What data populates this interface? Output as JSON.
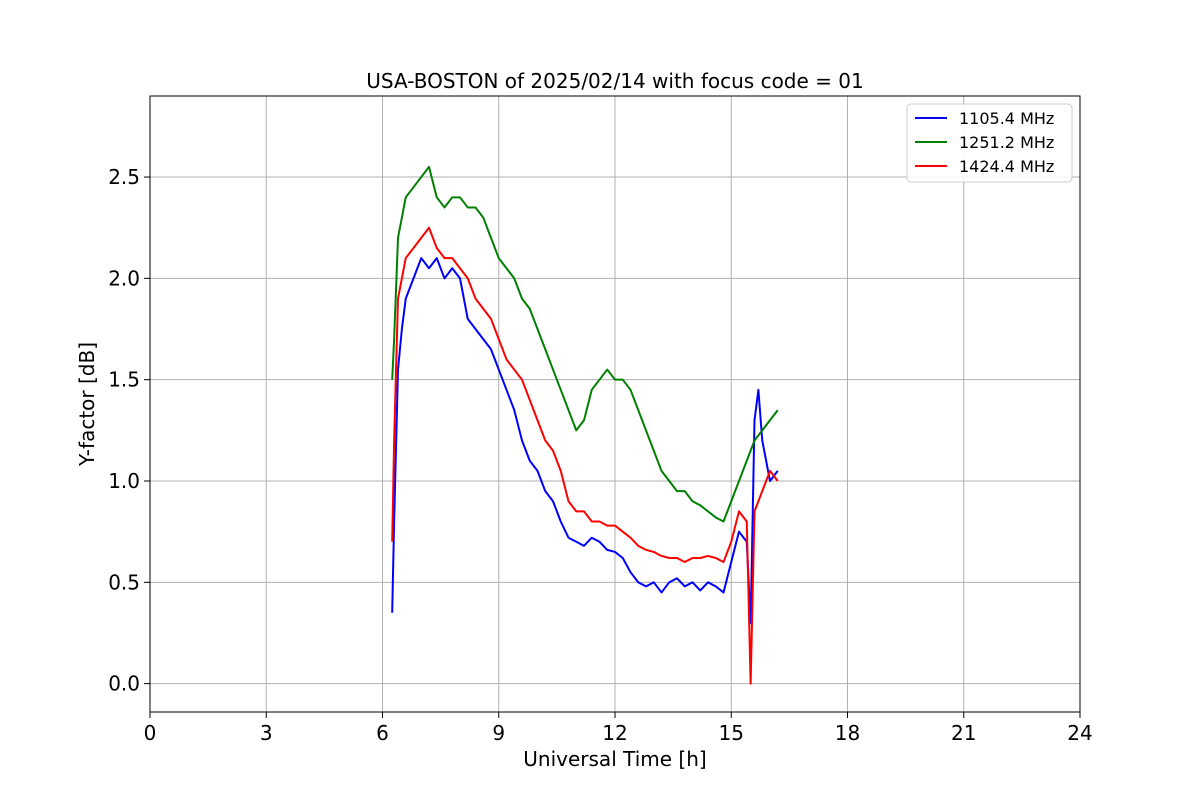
{
  "chart_data": {
    "type": "line",
    "title": "USA-BOSTON of 2025/02/14 with focus code = 01",
    "xlabel": "Universal Time [h]",
    "ylabel": "Y-factor [dB]",
    "xlim": [
      0,
      24
    ],
    "ylim": [
      -0.14,
      2.9
    ],
    "xticks": [
      0,
      3,
      6,
      9,
      12,
      15,
      18,
      21,
      24
    ],
    "xtick_labels": [
      "0",
      "3",
      "6",
      "9",
      "12",
      "15",
      "18",
      "21",
      "24"
    ],
    "yticks": [
      0.0,
      0.5,
      1.0,
      1.5,
      2.0,
      2.5
    ],
    "ytick_labels": [
      "0.0",
      "0.5",
      "1.0",
      "1.5",
      "2.0",
      "2.5"
    ],
    "grid": true,
    "legend_position": "top-right",
    "series": [
      {
        "name": "1105.4 MHz",
        "color": "#0000ff",
        "x": [
          6.25,
          6.3,
          6.4,
          6.5,
          6.6,
          6.8,
          7.0,
          7.2,
          7.4,
          7.6,
          7.8,
          8.0,
          8.2,
          8.4,
          8.6,
          8.8,
          9.0,
          9.2,
          9.4,
          9.6,
          9.8,
          10.0,
          10.2,
          10.4,
          10.6,
          10.8,
          11.0,
          11.2,
          11.4,
          11.6,
          11.8,
          12.0,
          12.2,
          12.4,
          12.6,
          12.8,
          13.0,
          13.2,
          13.4,
          13.6,
          13.8,
          14.0,
          14.2,
          14.4,
          14.6,
          14.8,
          15.0,
          15.2,
          15.4,
          15.5,
          15.6,
          15.7,
          15.8,
          16.0,
          16.2
        ],
        "y": [
          0.35,
          0.8,
          1.55,
          1.75,
          1.9,
          2.0,
          2.1,
          2.05,
          2.1,
          2.0,
          2.05,
          2.0,
          1.8,
          1.75,
          1.7,
          1.65,
          1.55,
          1.45,
          1.35,
          1.2,
          1.1,
          1.05,
          0.95,
          0.9,
          0.8,
          0.72,
          0.7,
          0.68,
          0.72,
          0.7,
          0.66,
          0.65,
          0.62,
          0.55,
          0.5,
          0.48,
          0.5,
          0.45,
          0.5,
          0.52,
          0.48,
          0.5,
          0.46,
          0.5,
          0.48,
          0.45,
          0.6,
          0.75,
          0.7,
          0.3,
          1.3,
          1.45,
          1.2,
          1.0,
          1.05
        ]
      },
      {
        "name": "1251.2 MHz",
        "color": "#008000",
        "x": [
          6.25,
          6.3,
          6.4,
          6.5,
          6.6,
          6.8,
          7.0,
          7.2,
          7.4,
          7.6,
          7.8,
          8.0,
          8.2,
          8.4,
          8.6,
          8.8,
          9.0,
          9.2,
          9.4,
          9.6,
          9.8,
          10.0,
          10.2,
          10.4,
          10.6,
          10.8,
          11.0,
          11.2,
          11.4,
          11.6,
          11.8,
          12.0,
          12.2,
          12.4,
          12.6,
          12.8,
          13.0,
          13.2,
          13.4,
          13.6,
          13.8,
          14.0,
          14.2,
          14.4,
          14.6,
          14.8,
          15.0,
          15.2,
          15.4,
          15.6,
          15.8,
          16.0,
          16.2
        ],
        "y": [
          1.5,
          1.7,
          2.2,
          2.3,
          2.4,
          2.45,
          2.5,
          2.55,
          2.4,
          2.35,
          2.4,
          2.4,
          2.35,
          2.35,
          2.3,
          2.2,
          2.1,
          2.05,
          2.0,
          1.9,
          1.85,
          1.75,
          1.65,
          1.55,
          1.45,
          1.35,
          1.25,
          1.3,
          1.45,
          1.5,
          1.55,
          1.5,
          1.5,
          1.45,
          1.35,
          1.25,
          1.15,
          1.05,
          1.0,
          0.95,
          0.95,
          0.9,
          0.88,
          0.85,
          0.82,
          0.8,
          0.9,
          1.0,
          1.1,
          1.2,
          1.25,
          1.3,
          1.35
        ]
      },
      {
        "name": "1424.4 MHz",
        "color": "#ff0000",
        "x": [
          6.25,
          6.3,
          6.4,
          6.5,
          6.6,
          6.8,
          7.0,
          7.2,
          7.4,
          7.6,
          7.8,
          8.0,
          8.2,
          8.4,
          8.6,
          8.8,
          9.0,
          9.2,
          9.4,
          9.6,
          9.8,
          10.0,
          10.2,
          10.4,
          10.6,
          10.8,
          11.0,
          11.2,
          11.4,
          11.6,
          11.8,
          12.0,
          12.2,
          12.4,
          12.6,
          12.8,
          13.0,
          13.2,
          13.4,
          13.6,
          13.8,
          14.0,
          14.2,
          14.4,
          14.6,
          14.8,
          15.0,
          15.2,
          15.4,
          15.5,
          15.6,
          15.8,
          16.0,
          16.2
        ],
        "y": [
          0.7,
          1.2,
          1.9,
          2.0,
          2.1,
          2.15,
          2.2,
          2.25,
          2.15,
          2.1,
          2.1,
          2.05,
          2.0,
          1.9,
          1.85,
          1.8,
          1.7,
          1.6,
          1.55,
          1.5,
          1.4,
          1.3,
          1.2,
          1.15,
          1.05,
          0.9,
          0.85,
          0.85,
          0.8,
          0.8,
          0.78,
          0.78,
          0.75,
          0.72,
          0.68,
          0.66,
          0.65,
          0.63,
          0.62,
          0.62,
          0.6,
          0.62,
          0.62,
          0.63,
          0.62,
          0.6,
          0.7,
          0.85,
          0.8,
          0.0,
          0.85,
          0.95,
          1.05,
          1.0
        ]
      }
    ]
  }
}
